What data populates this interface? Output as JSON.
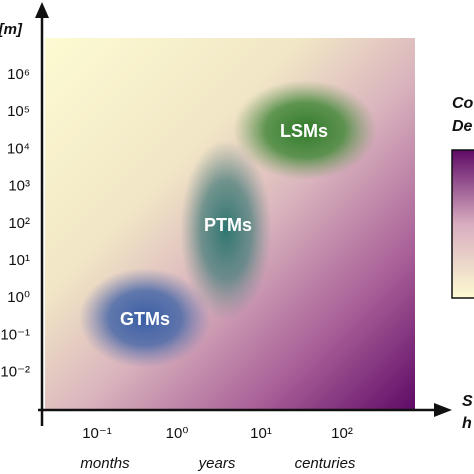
{
  "y_axis": {
    "unit": "[m]",
    "ticks": [
      "10⁶",
      "10⁵",
      "10⁴",
      "10³",
      "10²",
      "10¹",
      "10⁰",
      "10⁻¹",
      "10⁻²"
    ]
  },
  "x_axis": {
    "ticks": [
      "10⁻¹",
      "10⁰",
      "10¹",
      "10²"
    ],
    "categories": [
      "months",
      "years",
      "centuries"
    ],
    "label": [
      "S",
      "h"
    ]
  },
  "regions": [
    "GTMs",
    "PTMs",
    "LSMs"
  ],
  "colorbar": {
    "label": [
      "Co",
      "De"
    ]
  }
}
